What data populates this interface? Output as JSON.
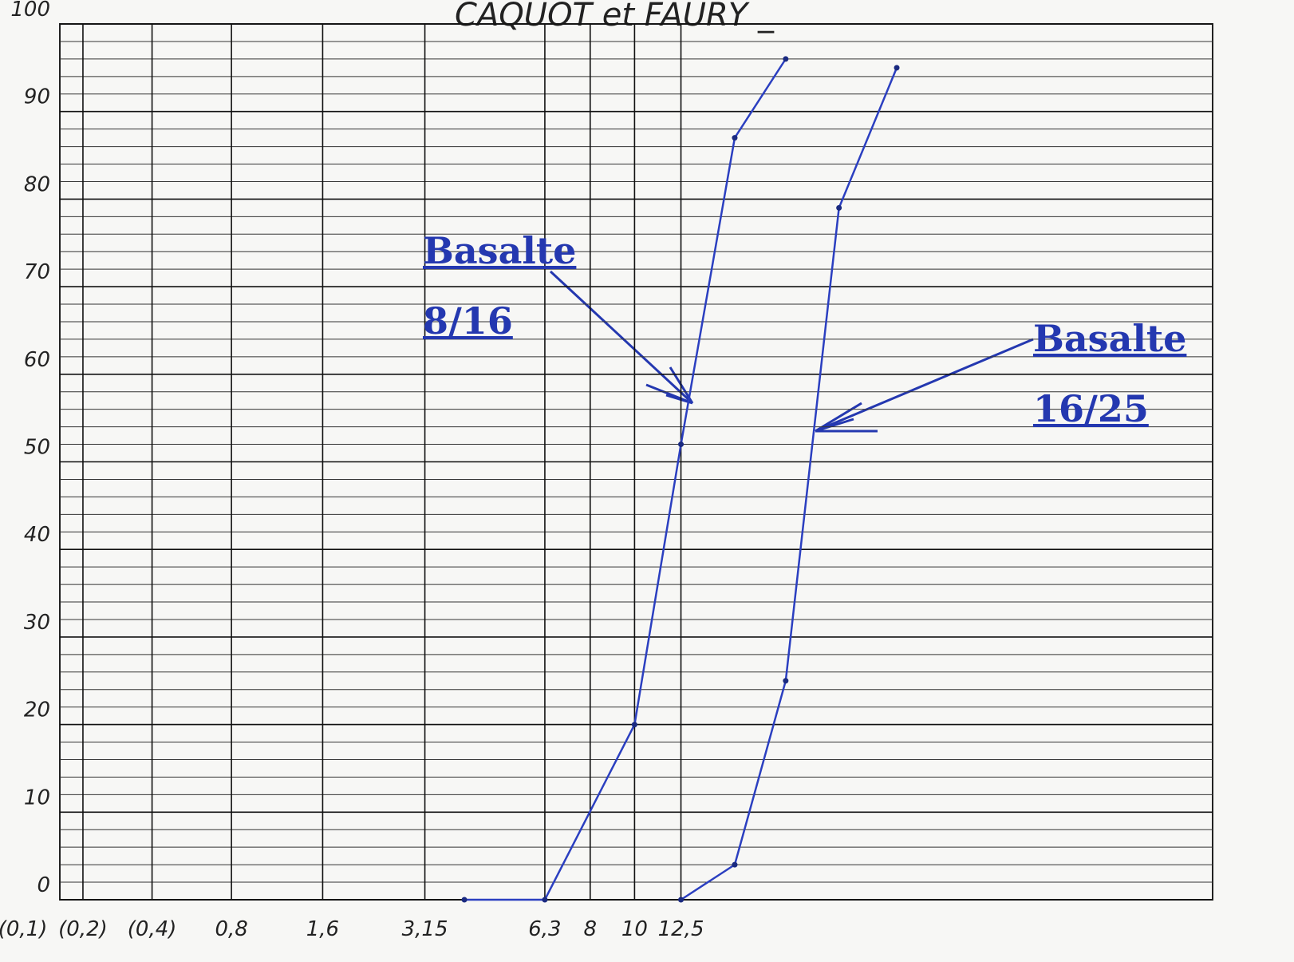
{
  "chart_data": {
    "type": "line",
    "title": "CAQUOT et FAURY _",
    "xscale": "faury",
    "xlim": [
      0.155,
      95
    ],
    "ylim": [
      0,
      100
    ],
    "xticks": [
      {
        "value": 0.1,
        "label": "(0,1)"
      },
      {
        "value": 0.2,
        "label": "(0,2)"
      },
      {
        "value": 0.4,
        "label": "(0,4)"
      },
      {
        "value": 0.8,
        "label": "0,8"
      },
      {
        "value": 1.6,
        "label": "1,6"
      },
      {
        "value": 3.15,
        "label": "3,15"
      },
      {
        "value": 6.3,
        "label": "6,3"
      },
      8,
      10,
      {
        "value": 12.5,
        "label": "12,5"
      }
    ],
    "yticks": [
      0,
      10,
      20,
      30,
      40,
      50,
      60,
      70,
      80,
      90,
      100
    ],
    "grid": true,
    "series": [
      {
        "name": "Basalte 8/16",
        "color": "#2b3fc0",
        "x": [
          4,
          6.3,
          10,
          12.5,
          16,
          20
        ],
        "values": [
          0,
          0,
          20,
          52,
          87,
          96
        ]
      },
      {
        "name": "Basalte 16/25",
        "color": "#2b3fc0",
        "x": [
          12.5,
          16,
          20,
          25,
          31.5
        ],
        "values": [
          0,
          4,
          25,
          79,
          95
        ]
      }
    ]
  }
}
